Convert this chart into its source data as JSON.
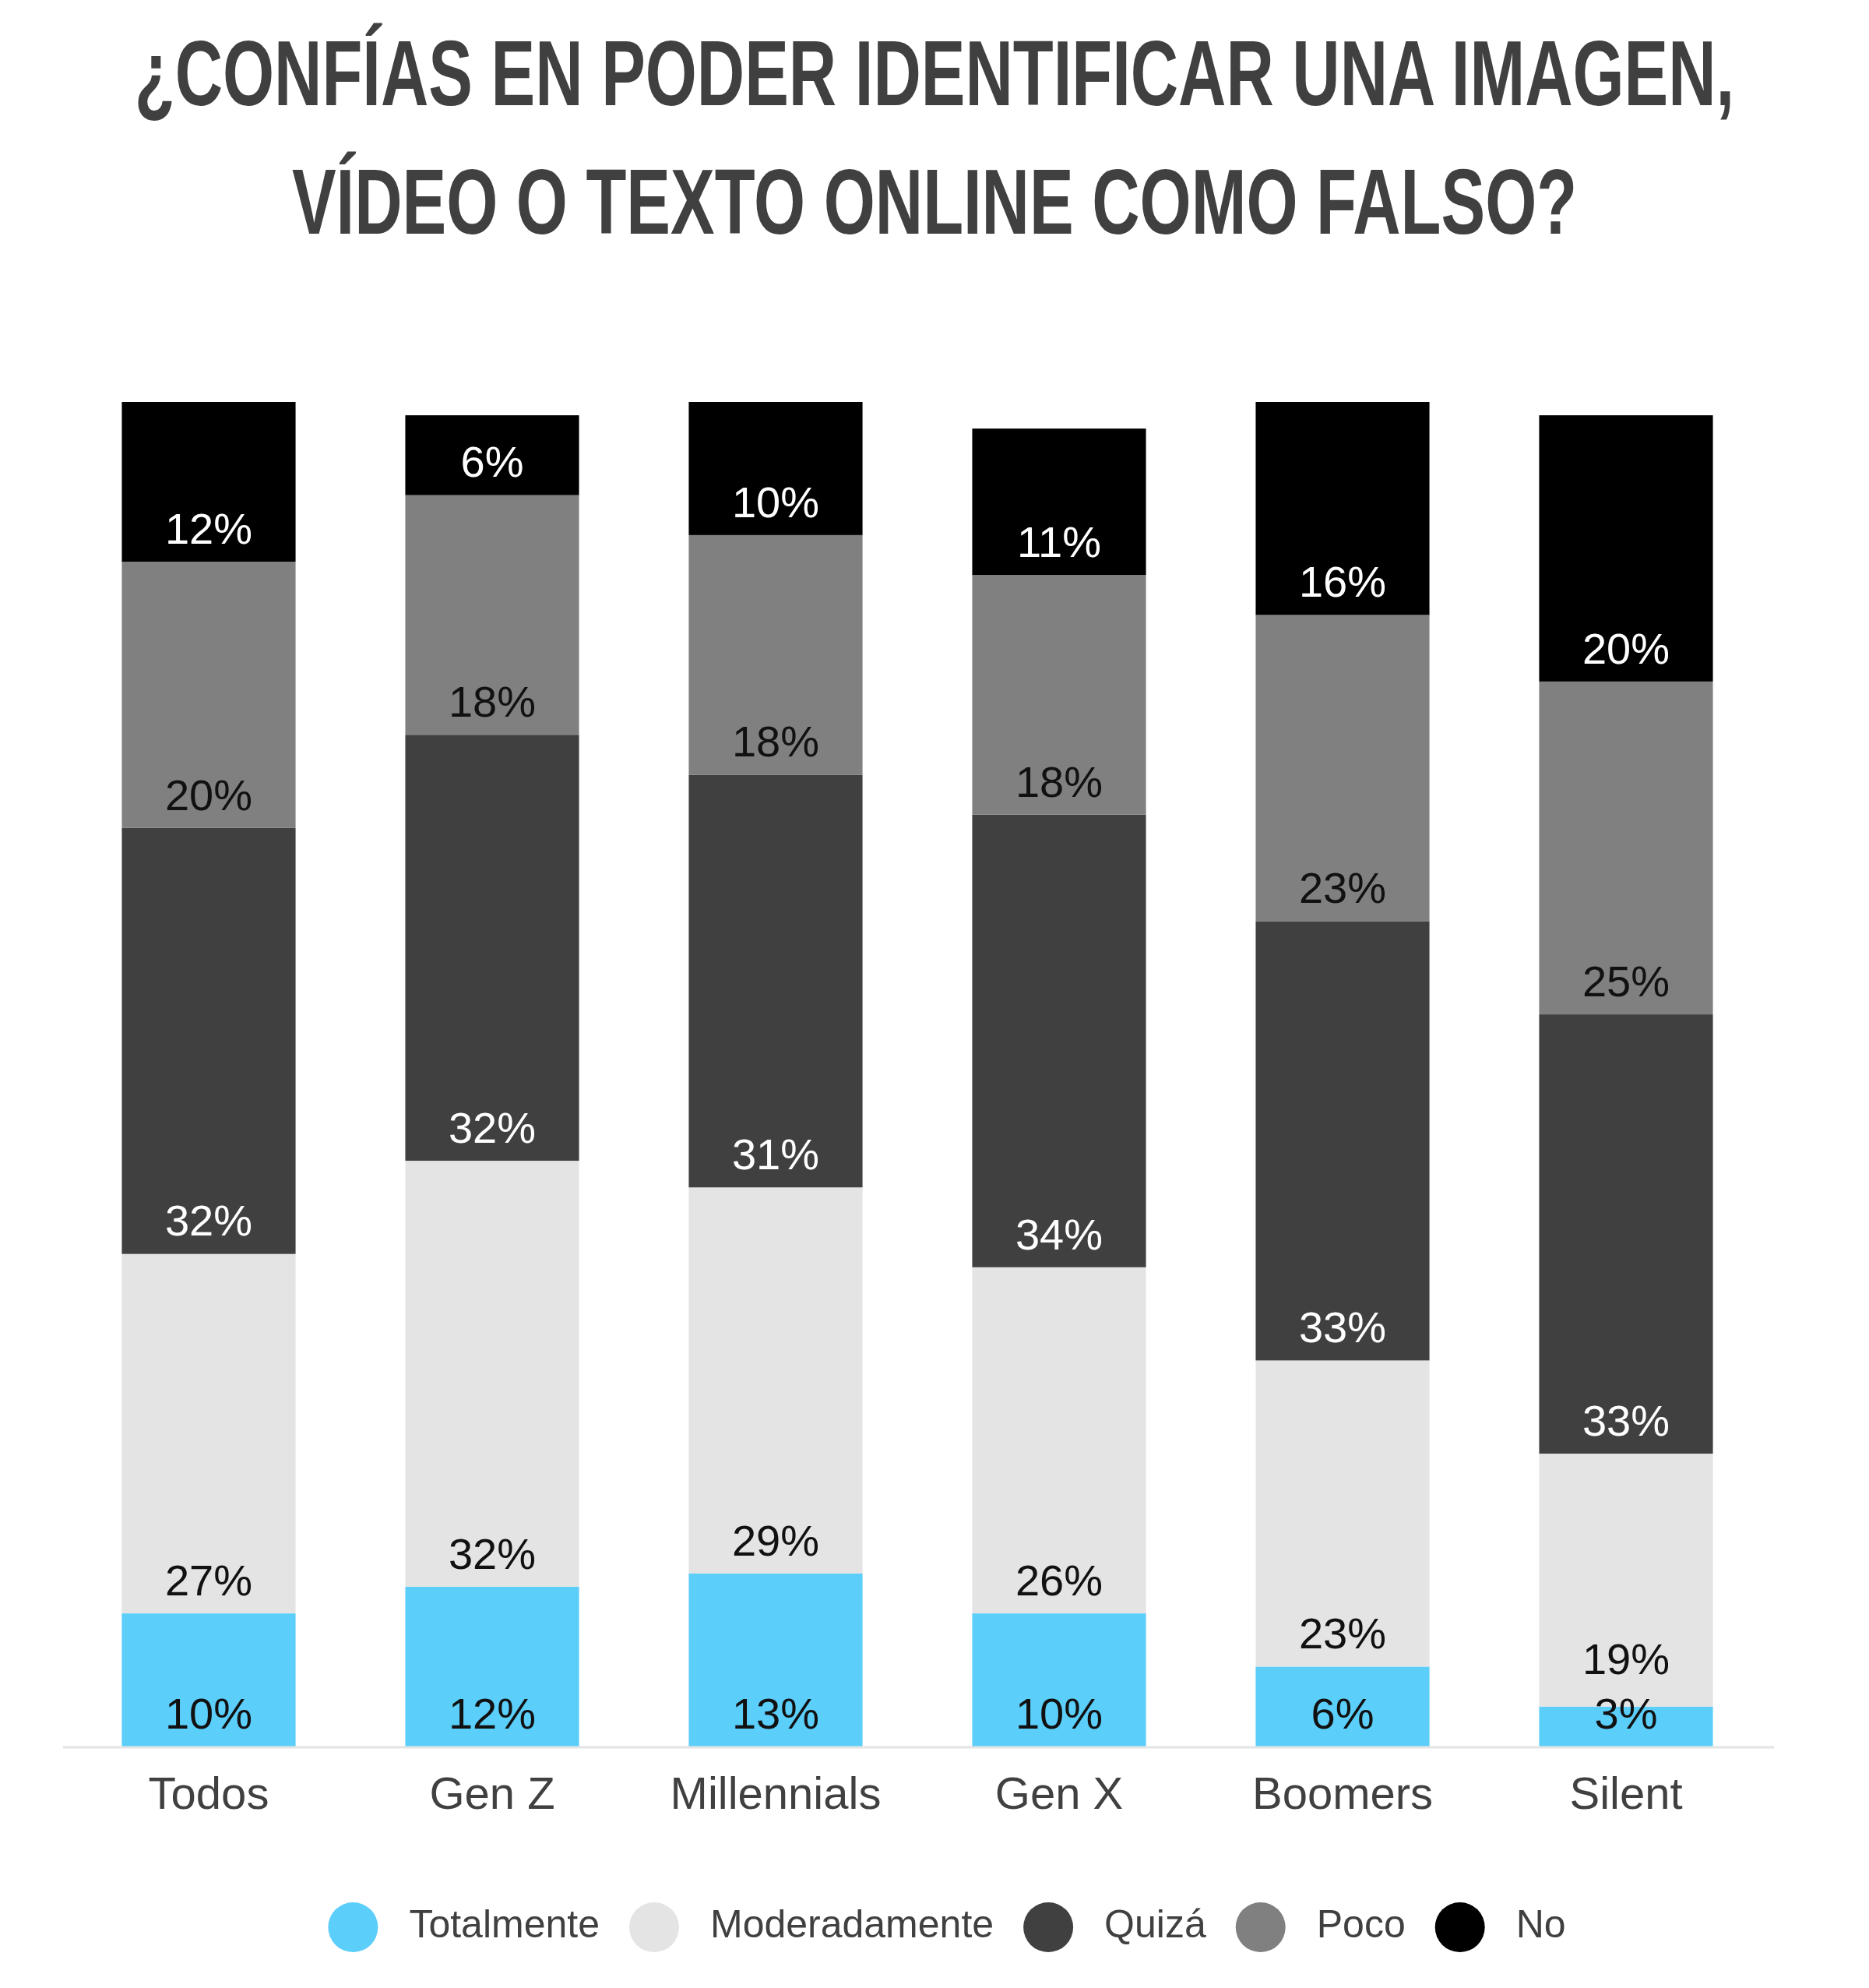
{
  "chart_data": {
    "type": "bar",
    "title": "¿CONFÍAS EN PODER IDENTIFICAR UNA IMAGEN, VÍDEO O TEXTO ONLINE COMO FALSO?",
    "categories": [
      "Todos",
      "Gen Z",
      "Millennials",
      "Gen X",
      "Boomers",
      "Silent"
    ],
    "stacked": true,
    "legend": "bottom",
    "tick_labels": "x",
    "series": [
      {
        "name": "Totalmente",
        "color": "#5bcefa",
        "values": [
          10,
          12,
          13,
          10,
          6,
          3
        ],
        "value_labels": [
          "10%",
          "12%",
          "13%",
          "10%",
          "6%",
          "3%"
        ]
      },
      {
        "name": "Moderadamente",
        "color": "#e4e4e4",
        "values": [
          27,
          32,
          29,
          26,
          23,
          19
        ],
        "value_labels": [
          "27%",
          "32%",
          "29%",
          "26%",
          "23%",
          "19%"
        ]
      },
      {
        "name": "Quizá",
        "color": "#404040",
        "values": [
          32,
          32,
          31,
          34,
          33,
          33
        ],
        "value_labels": [
          "32%",
          "32%",
          "31%",
          "34%",
          "33%",
          "33%"
        ]
      },
      {
        "name": "Poco",
        "color": "#808080",
        "values": [
          20,
          18,
          18,
          18,
          23,
          25
        ],
        "value_labels": [
          "20%",
          "18%",
          "18%",
          "18%",
          "23%",
          "25%"
        ]
      },
      {
        "name": "No",
        "color": "#000000",
        "values": [
          12,
          6,
          10,
          11,
          16,
          20
        ],
        "value_labels": [
          "12%",
          "6%",
          "10%",
          "11%",
          "16%",
          "20%"
        ]
      }
    ]
  }
}
